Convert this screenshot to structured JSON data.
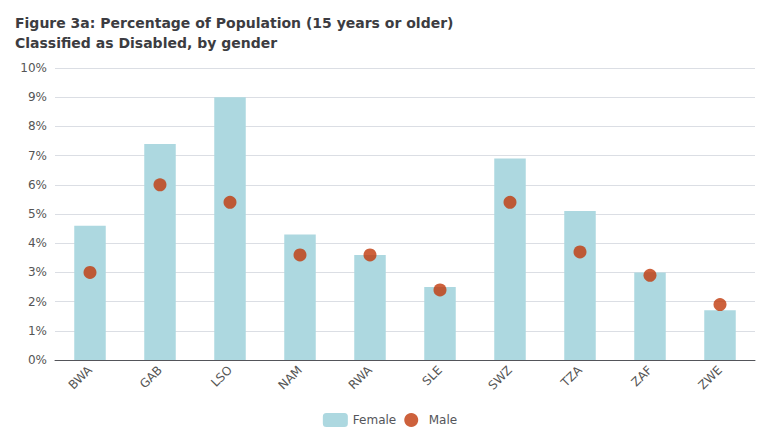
{
  "chart_data": {
    "type": "bar",
    "title": "Figure 3a: Percentage of Population (15 years or older)\nClassified as Disabled, by gender",
    "categories": [
      "BWA",
      "GAB",
      "LSO",
      "NAM",
      "RWA",
      "SLE",
      "SWZ",
      "TZA",
      "ZAF",
      "ZWE"
    ],
    "series": [
      {
        "name": "Female",
        "type": "bar",
        "color": "#add8e0",
        "values": [
          4.6,
          7.4,
          9.0,
          4.3,
          3.6,
          2.5,
          6.9,
          5.1,
          3.0,
          1.7
        ]
      },
      {
        "name": "Male",
        "type": "scatter",
        "color": "#c0390b",
        "marker": "circle",
        "values": [
          3.0,
          6.0,
          5.4,
          3.6,
          3.6,
          2.4,
          5.4,
          3.7,
          2.9,
          1.9
        ]
      }
    ],
    "ylim": [
      0,
      10
    ],
    "yticks": [
      {
        "value": 0,
        "label": "0%"
      },
      {
        "value": 1,
        "label": "1%"
      },
      {
        "value": 2,
        "label": "2%"
      },
      {
        "value": 3,
        "label": "3%"
      },
      {
        "value": 4,
        "label": "4%"
      },
      {
        "value": 5,
        "label": "5%"
      },
      {
        "value": 6,
        "label": "6%"
      },
      {
        "value": 7,
        "label": "7%"
      },
      {
        "value": 8,
        "label": "8%"
      },
      {
        "value": 9,
        "label": "9%"
      },
      {
        "value": 10,
        "label": "10%"
      }
    ],
    "grid": true,
    "legend": "bottom"
  }
}
